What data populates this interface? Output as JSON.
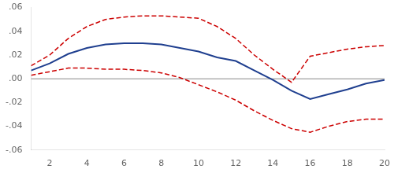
{
  "chart_data": {
    "type": "line",
    "x": [
      1,
      2,
      3,
      4,
      5,
      6,
      7,
      8,
      9,
      10,
      11,
      12,
      13,
      14,
      15,
      16,
      17,
      18,
      19,
      20
    ],
    "series": [
      {
        "color": "#cc0000",
        "line_style": "dashed",
        "values": [
          0.011,
          0.02,
          0.034,
          0.044,
          0.05,
          0.052,
          0.053,
          0.053,
          0.052,
          0.051,
          0.044,
          0.034,
          0.02,
          0.008,
          -0.003,
          0.019,
          0.022,
          0.025,
          0.027,
          0.028
        ]
      },
      {
        "color": "#cc0000",
        "line_style": "dashed",
        "values": [
          0.003,
          0.006,
          0.009,
          0.009,
          0.008,
          0.008,
          0.007,
          0.005,
          0.001,
          -0.005,
          -0.011,
          -0.018,
          -0.027,
          -0.035,
          -0.042,
          -0.045,
          -0.04,
          -0.036,
          -0.034,
          -0.034
        ]
      },
      {
        "color": "#1f3f8f",
        "line_style": "solid",
        "values": [
          0.007,
          0.013,
          0.021,
          0.026,
          0.029,
          0.03,
          0.03,
          0.029,
          0.026,
          0.023,
          0.018,
          0.015,
          0.007,
          -0.001,
          -0.01,
          -0.017,
          -0.013,
          -0.009,
          -0.004,
          -0.001
        ]
      }
    ],
    "reference_lines": [
      {
        "value": 0,
        "color": "#888888"
      }
    ],
    "xlim": [
      1,
      20
    ],
    "ylim": [
      -0.06,
      0.06
    ],
    "xticks": [
      2,
      4,
      6,
      8,
      10,
      12,
      14,
      16,
      18,
      20
    ],
    "yticks": [
      {
        "value": -0.06,
        "label": "-.06"
      },
      {
        "value": -0.04,
        "label": "-.04"
      },
      {
        "value": -0.02,
        "label": "-.02"
      },
      {
        "value": 0.0,
        "label": ".00"
      },
      {
        "value": 0.02,
        "label": ".02"
      },
      {
        "value": 0.04,
        "label": ".04"
      },
      {
        "value": 0.06,
        "label": ".06"
      }
    ],
    "grid": false
  }
}
